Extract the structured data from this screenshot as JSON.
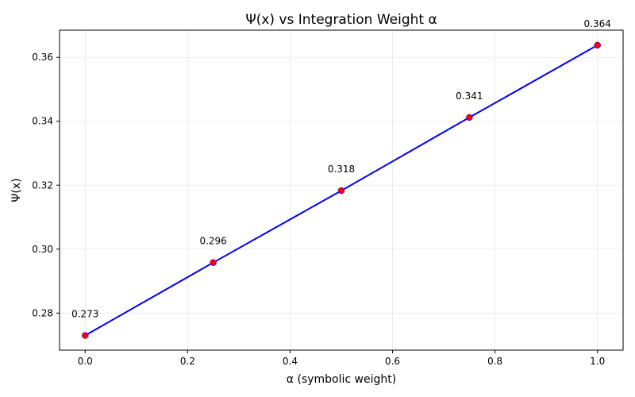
{
  "chart_data": {
    "type": "line",
    "title": "Ψ(x) vs Integration Weight α",
    "xlabel": "α (symbolic weight)",
    "ylabel": "Ψ(x)",
    "xlim": [
      -0.05,
      1.05
    ],
    "ylim": [
      0.2684,
      0.3685
    ],
    "xticks": [
      0.0,
      0.2,
      0.4,
      0.6,
      0.8,
      1.0
    ],
    "xtick_labels": [
      "0.0",
      "0.2",
      "0.4",
      "0.6",
      "0.8",
      "1.0"
    ],
    "yticks": [
      0.28,
      0.3,
      0.32,
      0.34,
      0.36
    ],
    "ytick_labels": [
      "0.28",
      "0.30",
      "0.32",
      "0.34",
      "0.36"
    ],
    "grid": true,
    "series": [
      {
        "x": [
          0.0,
          0.25,
          0.5,
          0.75,
          1.0
        ],
        "y": [
          0.273,
          0.2958,
          0.3183,
          0.3412,
          0.3638
        ],
        "labels": [
          "0.273",
          "0.296",
          "0.318",
          "0.341",
          "0.364"
        ],
        "line_color": "#0000ff",
        "marker_color": "#ff0000"
      }
    ]
  }
}
